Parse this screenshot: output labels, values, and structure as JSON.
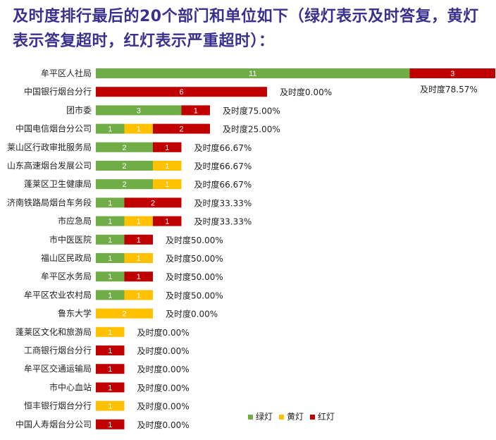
{
  "title": "及时度排行最后的20个部门和单位如下（绿灯表示及时答复，黄灯表示答复超时，红灯表示严重超时）：",
  "chart_data": {
    "type": "bar",
    "orientation": "horizontal",
    "stacked": true,
    "categories": [
      "牟平区人社局",
      "中国银行烟台分行",
      "团市委",
      "中国电信烟台分公司",
      "莱山区行政审批服务局",
      "山东高速烟台发展公司",
      "蓬莱区卫生健康局",
      "济南铁路局烟台车务段",
      "市应急局",
      "市中医医院",
      "福山区民政局",
      "牟平区水务局",
      "牟平区农业农村局",
      "鲁东大学",
      "蓬莱区文化和旅游局",
      "工商银行烟台分行",
      "牟平区交通运输局",
      "市中心血站",
      "恒丰银行烟台分行",
      "中国人寿烟台分公司"
    ],
    "series": [
      {
        "name": "绿灯",
        "color": "#70ad47",
        "values": [
          11,
          0,
          3,
          1,
          2,
          2,
          2,
          1,
          1,
          1,
          1,
          1,
          1,
          0,
          0,
          0,
          0,
          0,
          0,
          0
        ]
      },
      {
        "name": "黄灯",
        "color": "#ffc000",
        "values": [
          0,
          0,
          0,
          1,
          0,
          1,
          1,
          0,
          1,
          0,
          1,
          0,
          1,
          2,
          1,
          0,
          0,
          0,
          1,
          0
        ]
      },
      {
        "name": "红灯",
        "color": "#c00000",
        "values": [
          3,
          6,
          1,
          2,
          1,
          0,
          0,
          2,
          1,
          1,
          0,
          1,
          0,
          0,
          0,
          1,
          1,
          1,
          0,
          1
        ]
      }
    ],
    "annotations": [
      "及时度78.57%",
      "及时度0.00%",
      "及时度75.00%",
      "及时度25.00%",
      "及时度66.67%",
      "及时度66.67%",
      "及时度66.67%",
      "及时度33.33%",
      "及时度33.33%",
      "及时度50.00%",
      "及时度50.00%",
      "及时度50.00%",
      "及时度50.00%",
      "及时度0.00%",
      "及时度0.00%",
      "及时度0.00%",
      "及时度0.00%",
      "及时度0.00%",
      "及时度0.00%",
      "及时度0.00%"
    ],
    "legend_position": "bottom-right",
    "grid": false
  }
}
